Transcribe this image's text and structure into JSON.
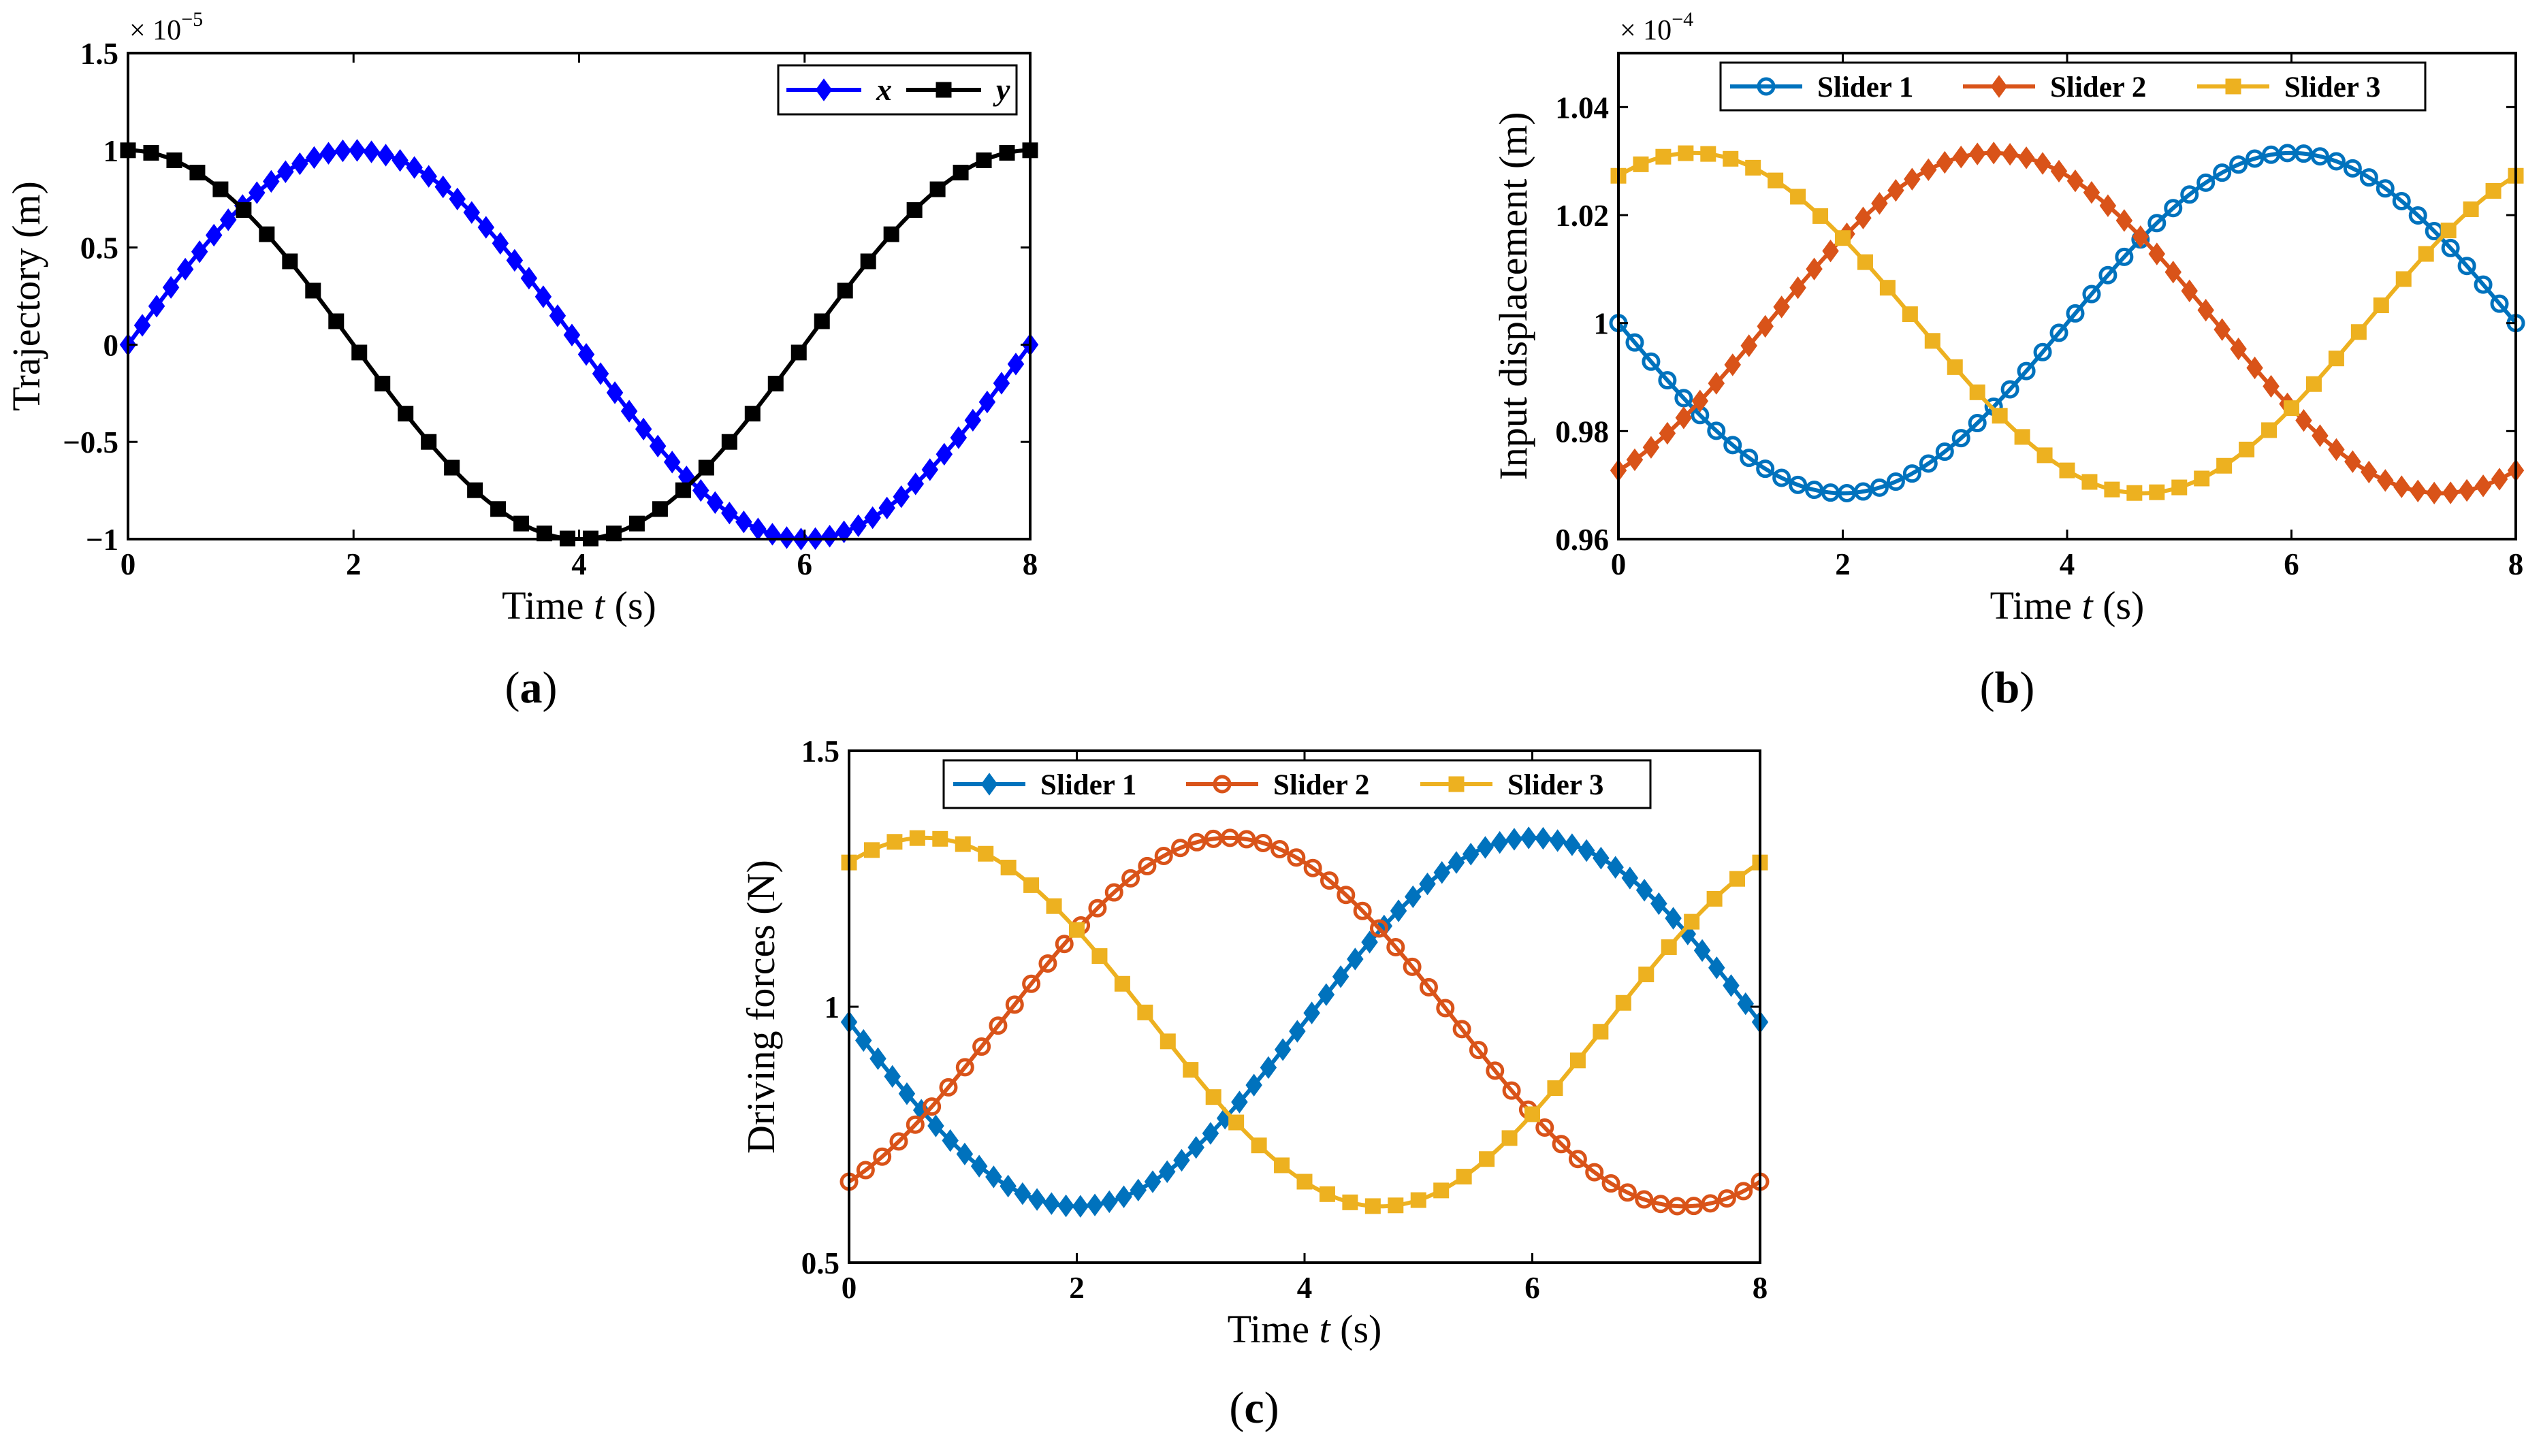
{
  "colors": {
    "blue": "#0000ff",
    "black": "#000000",
    "s1": "#0072bd",
    "s2": "#d95319",
    "s3": "#edb120"
  },
  "chart_data": [
    {
      "id": "a",
      "type": "line",
      "panel_label": "a",
      "xlabel_prefix": "Time ",
      "xlabel_var": "t",
      "xlabel_suffix": " (s)",
      "ylabel": "Trajectory (m)",
      "multiplier_base": "× 10",
      "multiplier_exp": "−5",
      "xlim": [
        0,
        8
      ],
      "ylim": [
        -1,
        1.5
      ],
      "xticks": [
        0,
        2,
        4,
        6,
        8
      ],
      "xtick_labels": [
        "0",
        "2",
        "4",
        "6",
        "8"
      ],
      "yticks": [
        -1,
        -0.5,
        0,
        0.5,
        1,
        1.5
      ],
      "ytick_labels": [
        "−1",
        "−0.5",
        "0",
        "0.5",
        "1",
        "1.5"
      ],
      "legend_position": "top-right",
      "series": [
        {
          "name": "x",
          "color": "#0000ff",
          "marker": "diamond",
          "func": "sin",
          "amplitude": 1,
          "offset": 0,
          "omega_over_pi": 0.25,
          "phase": 0,
          "t_range": [
            0,
            8
          ],
          "n_points": 64
        },
        {
          "name": "y",
          "color": "#000000",
          "marker": "square",
          "func": "cos",
          "amplitude": 1,
          "offset": 0,
          "omega_over_pi": 0.25,
          "phase": 0,
          "t_range": [
            0,
            8
          ],
          "n_points": 40
        }
      ]
    },
    {
      "id": "b",
      "type": "line",
      "panel_label": "b",
      "xlabel_prefix": "Time ",
      "xlabel_var": "t",
      "xlabel_suffix": " (s)",
      "ylabel": "Input displacement (m)",
      "multiplier_base": "× 10",
      "multiplier_exp": "−4",
      "xlim": [
        0,
        8
      ],
      "ylim": [
        0.96,
        1.05
      ],
      "xticks": [
        0,
        2,
        4,
        6,
        8
      ],
      "xtick_labels": [
        "0",
        "2",
        "4",
        "6",
        "8"
      ],
      "yticks": [
        0.96,
        0.98,
        1.0,
        1.02,
        1.04
      ],
      "ytick_labels": [
        "0.96",
        "0.98",
        "1",
        "1.02",
        "1.04"
      ],
      "legend_position": "top",
      "series": [
        {
          "name": "Slider 1",
          "color": "#0072bd",
          "marker": "circle",
          "func": "sin",
          "amplitude": -0.0315,
          "offset": 1.0,
          "omega_over_pi": 0.25,
          "phase": 0,
          "t_range": [
            0,
            8
          ],
          "n_points": 56
        },
        {
          "name": "Slider 2",
          "color": "#d95319",
          "marker": "diamond",
          "func": "sin",
          "amplitude": -0.0315,
          "offset": 1.0,
          "omega_over_pi": 0.25,
          "phase": 2.0944,
          "t_range": [
            0,
            8
          ],
          "n_points": 56
        },
        {
          "name": "Slider 3",
          "color": "#edb120",
          "marker": "square",
          "func": "sin",
          "amplitude": -0.0315,
          "offset": 1.0,
          "omega_over_pi": 0.25,
          "phase": -2.0944,
          "t_range": [
            0,
            8
          ],
          "n_points": 41
        }
      ]
    },
    {
      "id": "c",
      "type": "line",
      "panel_label": "c",
      "xlabel_prefix": "Time ",
      "xlabel_var": "t",
      "xlabel_suffix": " (s)",
      "ylabel": "Driving forces (N)",
      "multiplier_base": "",
      "multiplier_exp": "",
      "xlim": [
        0,
        8
      ],
      "ylim": [
        0.5,
        1.5
      ],
      "xticks": [
        0,
        2,
        4,
        6,
        8
      ],
      "xtick_labels": [
        "0",
        "2",
        "4",
        "6",
        "8"
      ],
      "yticks": [
        0.5,
        1,
        1.5
      ],
      "ytick_labels": [
        "0.5",
        "1",
        "1.5"
      ],
      "legend_position": "top",
      "series": [
        {
          "name": "Slider 1",
          "color": "#0072bd",
          "marker": "diamond",
          "func": "sin",
          "amplitude": -0.36,
          "offset": 0.97,
          "omega_over_pi": 0.25,
          "phase": 0,
          "t_range": [
            0,
            8
          ],
          "n_points": 64
        },
        {
          "name": "Slider 2",
          "color": "#d95319",
          "marker": "circle",
          "func": "sin",
          "amplitude": -0.36,
          "offset": 0.97,
          "omega_over_pi": 0.25,
          "phase": 2.0944,
          "t_range": [
            0,
            8
          ],
          "n_points": 56
        },
        {
          "name": "Slider 3",
          "color": "#edb120",
          "marker": "square",
          "func": "sin",
          "amplitude": -0.36,
          "offset": 0.97,
          "omega_over_pi": 0.25,
          "phase": -2.0944,
          "t_range": [
            0,
            8
          ],
          "n_points": 41
        }
      ]
    }
  ]
}
